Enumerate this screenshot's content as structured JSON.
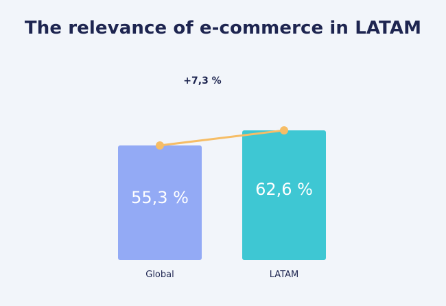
{
  "title": "The relevance of e-commerce in LATAM",
  "colors": {
    "background": "#f2f5fa",
    "title": "#1e2550",
    "connector": "#f6bd66"
  },
  "chart_data": {
    "type": "bar",
    "categories": [
      "Global",
      "LATAM"
    ],
    "values": [
      55.3,
      62.6
    ],
    "value_labels": [
      "55,3 %",
      "62,6 %"
    ],
    "bar_colors": [
      "#93aaf5",
      "#3ec7d3"
    ],
    "ylim": [
      0,
      70
    ],
    "grid": false,
    "annotation": {
      "text": "+7,3 %",
      "value": 7.3,
      "connects_bar_tops": true
    }
  }
}
